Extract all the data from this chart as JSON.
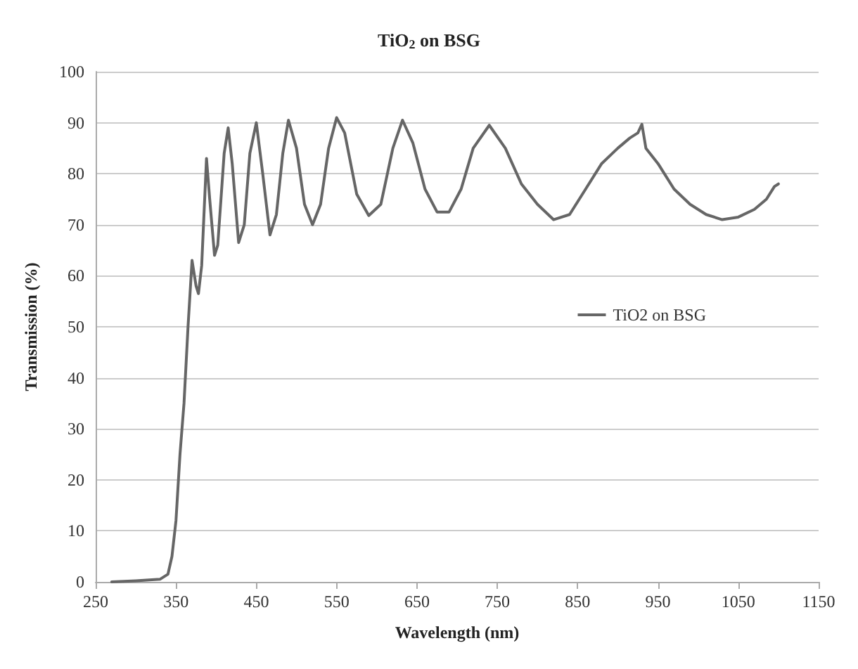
{
  "chart_data": {
    "type": "line",
    "title": "TiO$_{2}$ on BSG",
    "xlabel": "Wavelength (nm)",
    "ylabel": "Transmission (%)",
    "x": [
      270,
      300,
      330,
      340,
      345,
      350,
      355,
      360,
      365,
      370,
      375,
      378,
      382,
      388,
      392,
      398,
      402,
      410,
      415,
      420,
      428,
      435,
      442,
      450,
      458,
      467,
      475,
      483,
      490,
      500,
      510,
      520,
      530,
      540,
      550,
      560,
      575,
      590,
      605,
      620,
      632,
      645,
      660,
      675,
      690,
      705,
      720,
      740,
      760,
      780,
      800,
      820,
      840,
      860,
      880,
      900,
      915,
      925,
      930,
      935,
      950,
      970,
      990,
      1010,
      1030,
      1050,
      1070,
      1085,
      1095,
      1100
    ],
    "series": [
      {
        "name": "TiO2 on BSG",
        "color": "#666666",
        "values": [
          0,
          0.2,
          0.5,
          1.5,
          5,
          12,
          25,
          35,
          50,
          63,
          58,
          56.5,
          62,
          83,
          75,
          64,
          66,
          84,
          89,
          82,
          66.5,
          70,
          84,
          90,
          80,
          68,
          72,
          84,
          90.5,
          85,
          74,
          70,
          74,
          85,
          91,
          88,
          76,
          71.8,
          74,
          85,
          90.5,
          86,
          77,
          72.5,
          72.5,
          77,
          85,
          89.5,
          85,
          78,
          74,
          71,
          72,
          77,
          82,
          85,
          87,
          88,
          89.7,
          85,
          82,
          77,
          74,
          72,
          71,
          71.5,
          73,
          75,
          77.5,
          78
        ]
      }
    ],
    "xlim": [
      250,
      1150
    ],
    "xticks": [
      250,
      350,
      450,
      550,
      650,
      750,
      850,
      950,
      1050,
      1150
    ],
    "ylim": [
      0,
      100
    ],
    "yticks": [
      0,
      10,
      20,
      30,
      40,
      50,
      60,
      70,
      80,
      90,
      100
    ],
    "grid": "y",
    "legend": "right",
    "marker": "none",
    "line_style": "solid"
  }
}
